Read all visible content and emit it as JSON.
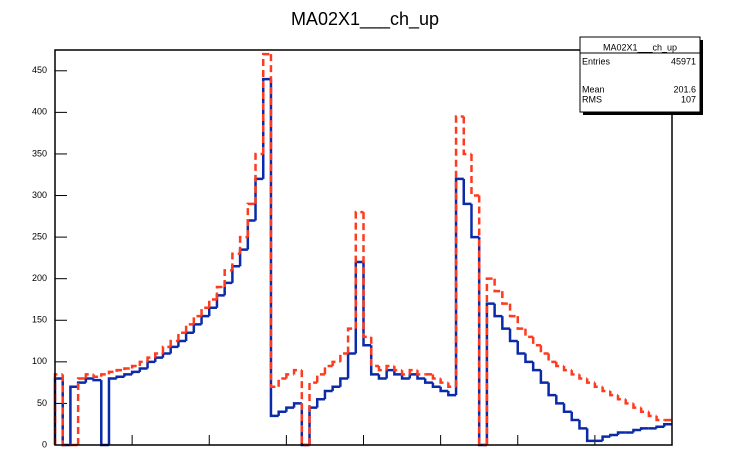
{
  "chart_data": {
    "type": "histogram",
    "title": "MA02X1___ch_up",
    "bins": [
      0,
      5,
      10,
      15,
      20,
      25,
      30,
      35,
      40,
      45,
      50,
      55,
      60,
      65,
      70,
      75,
      80,
      85,
      90,
      95,
      100,
      105,
      110,
      115,
      120,
      125,
      130,
      135,
      140,
      145,
      150,
      155,
      160,
      165,
      170,
      175,
      180,
      185,
      190,
      195,
      200,
      205,
      210,
      215,
      220,
      225,
      230,
      235,
      240,
      245,
      250,
      255,
      260,
      265,
      270,
      275,
      280,
      285,
      290,
      295,
      300,
      305,
      310,
      315,
      320,
      325,
      330,
      335,
      340,
      345,
      350,
      355,
      360,
      365,
      370,
      375,
      380,
      385,
      390,
      395,
      400
    ],
    "series": [
      {
        "name": "MA02X1___ch_up",
        "color": "#0b2aa8",
        "dashed": false,
        "values": [
          80,
          0,
          70,
          75,
          80,
          78,
          0,
          80,
          82,
          85,
          88,
          92,
          100,
          105,
          110,
          118,
          125,
          135,
          145,
          155,
          165,
          180,
          195,
          215,
          235,
          270,
          320,
          440,
          35,
          40,
          45,
          50,
          0,
          45,
          55,
          65,
          70,
          80,
          110,
          220,
          120,
          85,
          80,
          90,
          85,
          80,
          85,
          80,
          75,
          70,
          65,
          60,
          320,
          290,
          250,
          0,
          170,
          155,
          140,
          125,
          110,
          100,
          90,
          75,
          60,
          50,
          40,
          30,
          20,
          5,
          5,
          10,
          12,
          15,
          15,
          18,
          20,
          20,
          22,
          25
        ]
      },
      {
        "color": "#ff3b1f",
        "dashed": true,
        "values": [
          85,
          0,
          0,
          80,
          85,
          82,
          85,
          88,
          90,
          92,
          95,
          100,
          105,
          110,
          118,
          125,
          135,
          145,
          155,
          165,
          175,
          190,
          210,
          230,
          250,
          290,
          350,
          470,
          70,
          80,
          85,
          90,
          0,
          75,
          85,
          95,
          100,
          110,
          140,
          280,
          130,
          95,
          90,
          95,
          90,
          85,
          90,
          85,
          85,
          80,
          75,
          70,
          395,
          350,
          300,
          0,
          200,
          185,
          170,
          155,
          140,
          130,
          120,
          110,
          100,
          95,
          90,
          85,
          80,
          75,
          70,
          65,
          60,
          55,
          50,
          45,
          40,
          35,
          30,
          30
        ]
      }
    ],
    "xlim": [
      0,
      400
    ],
    "xticks": [
      0,
      50,
      100,
      150,
      200,
      250,
      300,
      350,
      400
    ],
    "ylim": [
      0,
      475
    ],
    "yticks": [
      0,
      50,
      100,
      150,
      200,
      250,
      300,
      350,
      400,
      450
    ],
    "stats": {
      "name": "MA02X1___ch_up",
      "rows": [
        [
          "Entries",
          "45971"
        ],
        [
          "Mean",
          "201.6"
        ],
        [
          "RMS",
          "107"
        ]
      ]
    }
  }
}
